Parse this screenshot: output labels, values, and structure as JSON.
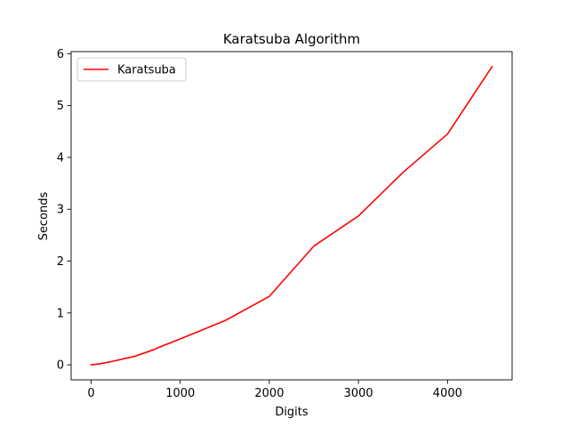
{
  "chart_data": {
    "type": "line",
    "title": "Karatsuba Algorithm",
    "xlabel": "Digits",
    "ylabel": "Seconds",
    "xlim": [
      -225,
      4725
    ],
    "ylim": [
      -0.29,
      6.04
    ],
    "xticks": [
      0,
      1000,
      2000,
      3000,
      4000
    ],
    "yticks": [
      0,
      1,
      2,
      3,
      4,
      5,
      6
    ],
    "grid": false,
    "legend": {
      "location": "upper-left",
      "frame": true
    },
    "series": [
      {
        "name": "Karatsuba",
        "color": "#ff0000",
        "x": [
          0,
          100,
          250,
          500,
          600,
          700,
          750,
          1000,
          1500,
          2000,
          2500,
          3000,
          3500,
          4000,
          4500
        ],
        "y": [
          0.0,
          0.02,
          0.07,
          0.17,
          0.23,
          0.29,
          0.33,
          0.5,
          0.85,
          1.32,
          2.29,
          2.87,
          3.71,
          4.45,
          5.75
        ]
      }
    ]
  }
}
